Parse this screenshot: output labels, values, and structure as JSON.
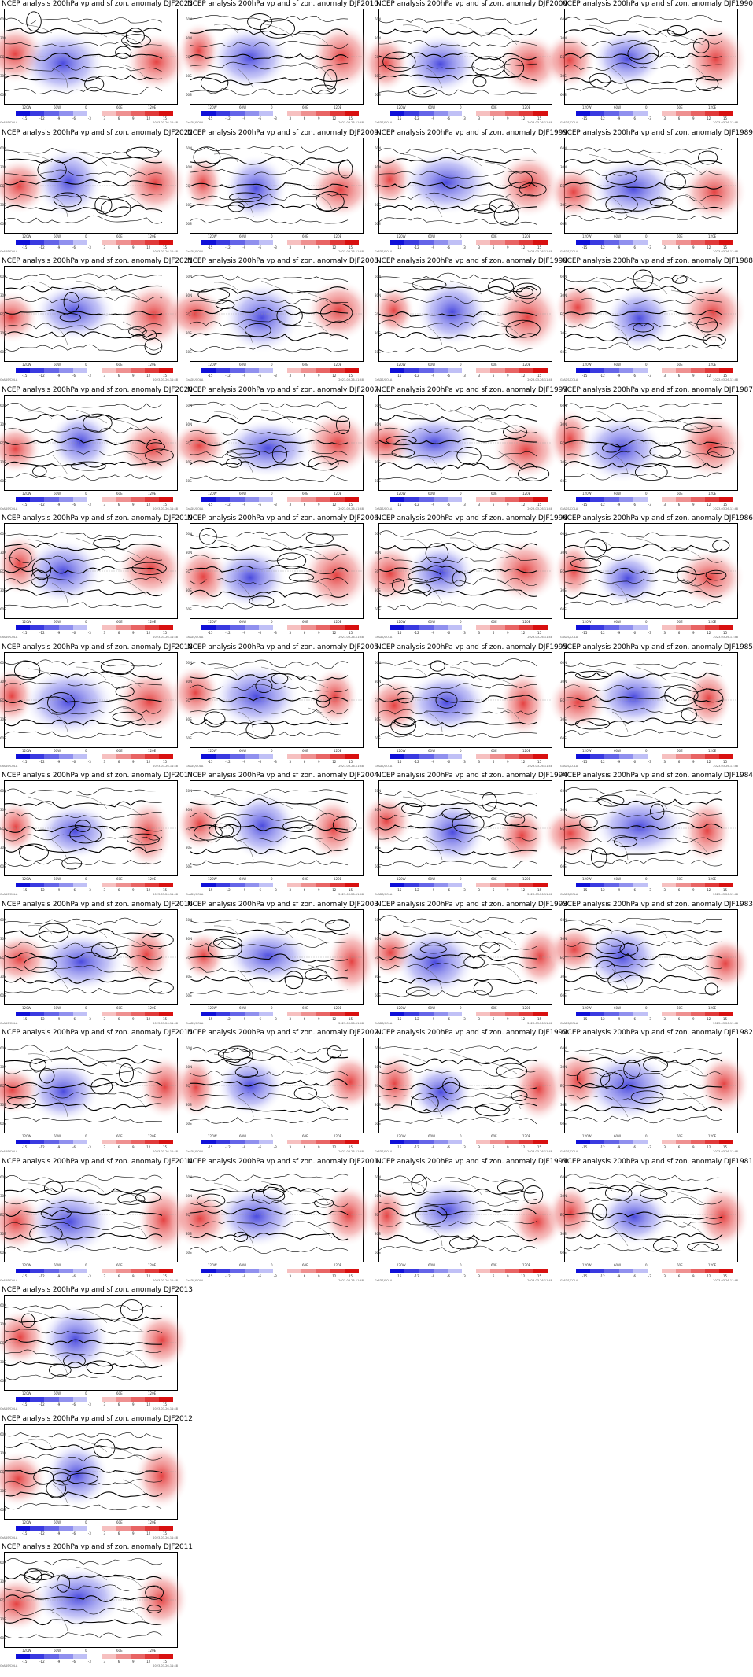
{
  "panels": [
    {
      "id": "djf2023",
      "title": "NCEP analysis 200hPa vp and sf zon. anomaly DJF2023"
    },
    {
      "id": "djf2010",
      "title": "NCEP analysis 200hPa vp and sf zon. anomaly DJF2010"
    },
    {
      "id": "djf2000",
      "title": "NCEP analysis 200hPa vp and sf zon. anomaly DJF2000"
    },
    {
      "id": "djf1990",
      "title": "NCEP analysis 200hPa vp and sf zon. anomaly DJF1990"
    },
    {
      "id": "djf2022",
      "title": "NCEP analysis 200hPa vp and sf zon. anomaly DJF2022"
    },
    {
      "id": "djf2009",
      "title": "NCEP analysis 200hPa vp and sf zon. anomaly DJF2009"
    },
    {
      "id": "djf1999",
      "title": "NCEP analysis 200hPa vp and sf zon. anomaly DJF1999"
    },
    {
      "id": "djf1989",
      "title": "NCEP analysis 200hPa vp and sf zon. anomaly DJF1989"
    },
    {
      "id": "djf2021",
      "title": "NCEP analysis 200hPa vp and sf zon. anomaly DJF2021"
    },
    {
      "id": "djf2008",
      "title": "NCEP analysis 200hPa vp and sf zon. anomaly DJF2008"
    },
    {
      "id": "djf1998",
      "title": "NCEP analysis 200hPa vp and sf zon. anomaly DJF1998"
    },
    {
      "id": "djf1988",
      "title": "NCEP analysis 200hPa vp and sf zon. anomaly DJF1988"
    },
    {
      "id": "djf2020",
      "title": "NCEP analysis 200hPa vp and sf zon. anomaly DJF2020"
    },
    {
      "id": "djf2007",
      "title": "NCEP analysis 200hPa vp and sf zon. anomaly DJF2007"
    },
    {
      "id": "djf1997",
      "title": "NCEP analysis 200hPa vp and sf zon. anomaly DJF1997"
    },
    {
      "id": "djf1987",
      "title": "NCEP analysis 200hPa vp and sf zon. anomaly DJF1987"
    },
    {
      "id": "djf2019",
      "title": "NCEP analysis 200hPa vp and sf zon. anomaly DJF2019"
    },
    {
      "id": "djf2006",
      "title": "NCEP analysis 200hPa vp and sf zon. anomaly DJF2006"
    },
    {
      "id": "djf1996",
      "title": "NCEP analysis 200hPa vp and sf zon. anomaly DJF1996"
    },
    {
      "id": "djf1986",
      "title": "NCEP analysis 200hPa vp and sf zon. anomaly DJF1986"
    },
    {
      "id": "djf2018",
      "title": "NCEP analysis 200hPa vp and sf zon. anomaly DJF2018"
    },
    {
      "id": "djf2005",
      "title": "NCEP analysis 200hPa vp and sf zon. anomaly DJF2005"
    },
    {
      "id": "djf1995",
      "title": "NCEP analysis 200hPa vp and sf zon. anomaly DJF1995"
    },
    {
      "id": "djf1985",
      "title": "NCEP analysis 200hPa vp and sf zon. anomaly DJF1985"
    },
    {
      "id": "djf2017",
      "title": "NCEP analysis 200hPa vp and sf zon. anomaly DJF2017"
    },
    {
      "id": "djf2004",
      "title": "NCEP analysis 200hPa vp and sf zon. anomaly DJF2004"
    },
    {
      "id": "djf1994",
      "title": "NCEP analysis 200hPa vp and sf zon. anomaly DJF1994"
    },
    {
      "id": "djf1984",
      "title": "NCEP analysis 200hPa vp and sf zon. anomaly DJF1984"
    },
    {
      "id": "djf2016",
      "title": "NCEP analysis 200hPa vp and sf zon. anomaly DJF2016"
    },
    {
      "id": "djf2003",
      "title": "NCEP analysis 200hPa vp and sf zon. anomaly DJF2003"
    },
    {
      "id": "djf1993",
      "title": "NCEP analysis 200hPa vp and sf zon. anomaly DJF1993"
    },
    {
      "id": "djf1983",
      "title": "NCEP analysis 200hPa vp and sf zon. anomaly DJF1983"
    },
    {
      "id": "djf2015",
      "title": "NCEP analysis 200hPa vp and sf zon. anomaly DJF2015"
    },
    {
      "id": "djf2002",
      "title": "NCEP analysis 200hPa vp and sf zon. anomaly DJF2002"
    },
    {
      "id": "djf1992",
      "title": "NCEP analysis 200hPa vp and sf zon. anomaly DJF1992"
    },
    {
      "id": "djf1982",
      "title": "NCEP analysis 200hPa vp and sf zon. anomaly DJF1982"
    },
    {
      "id": "djf2014",
      "title": "NCEP analysis 200hPa vp and sf zon. anomaly DJF2014"
    },
    {
      "id": "djf2001",
      "title": "NCEP analysis 200hPa vp and sf zon. anomaly DJF2001"
    },
    {
      "id": "djf1991",
      "title": "NCEP analysis 200hPa vp and sf zon. anomaly DJF1991"
    },
    {
      "id": "djf1981",
      "title": "NCEP analysis 200hPa vp and sf zon. anomaly DJF1981"
    },
    {
      "id": "djf2013",
      "title": "NCEP analysis 200hPa vp and sf zon. anomaly DJF2013"
    },
    {
      "id": "djf2012",
      "title": "NCEP analysis 200hPa vp and sf zon. anomaly DJF2012"
    },
    {
      "id": "djf2011",
      "title": "NCEP analysis 200hPa vp and sf zon. anomaly DJF2011"
    }
  ],
  "y_axis_labels": [
    "60N",
    "30N",
    "EQ",
    "30S",
    "60S"
  ],
  "x_axis_labels": [
    "120W",
    "60W",
    "0",
    "60E",
    "120E"
  ],
  "colorbar_labels": [
    "-15",
    "-12",
    "-9",
    "-6",
    "-3",
    "3",
    "6",
    "9",
    "12",
    "15"
  ],
  "colorbar_colors": [
    "#1010d8",
    "#3a3ae0",
    "#6464e8",
    "#9090ee",
    "#c0c0f6",
    "#ffffff",
    "#f6c0c0",
    "#ee9090",
    "#e86464",
    "#e03a3a",
    "#d81010"
  ],
  "footer_left": "GrADS/COLA",
  "footer_right": "2023-03-26-11:48"
}
